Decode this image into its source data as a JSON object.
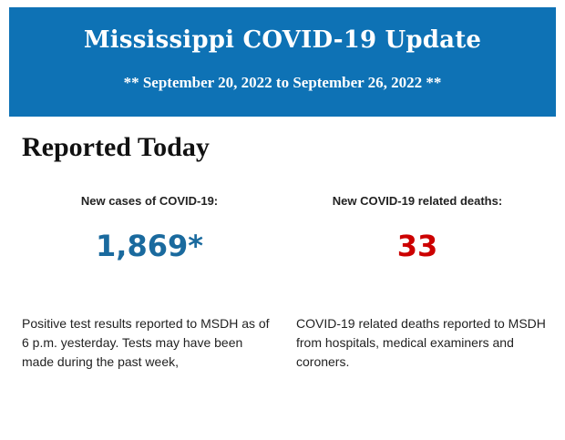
{
  "banner": {
    "title": "Mississippi COVID-19 Update",
    "dates": "** September 20, 2022 to September 26, 2022 **",
    "background_color": "#0e72b5"
  },
  "reported_today": {
    "heading": "Reported Today",
    "cases": {
      "label": "New cases of COVID-19:",
      "value": "1,869*",
      "value_color": "#1a6a9e",
      "description": "Positive test results reported to MSDH as of 6 p.m. yesterday. Tests may have been made during the past week,"
    },
    "deaths": {
      "label": "New COVID-19 related deaths:",
      "value": "33",
      "value_color": "#cc0000",
      "description": "COVID-19 related deaths reported to MSDH from hospitals, medical examiners and coroners."
    }
  }
}
